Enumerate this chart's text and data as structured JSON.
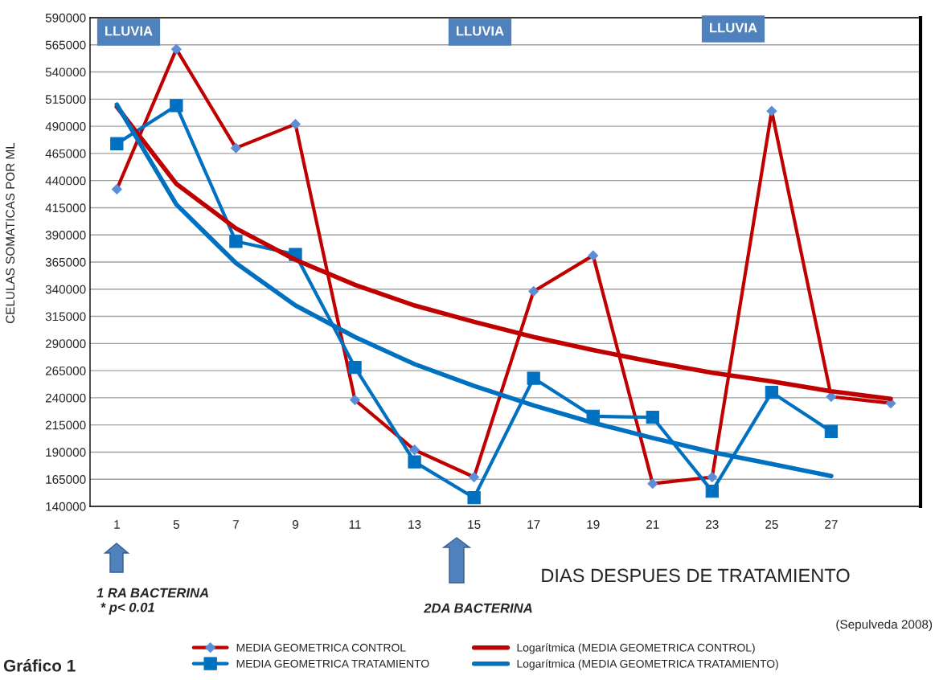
{
  "chart_data": {
    "type": "line",
    "xlabel": "DIAS DESPUES DE TRATAMIENTO",
    "ylabel": "CELULAS SOMATICAS POR ML",
    "categories": [
      "1",
      "5",
      "7",
      "9",
      "11",
      "13",
      "15",
      "17",
      "19",
      "21",
      "23",
      "25",
      "27",
      null
    ],
    "series": [
      {
        "name": "MEDIA GEOMETRICA CONTROL",
        "color": "#c00000",
        "marker": "diamond",
        "values": [
          432000,
          561000,
          470000,
          492000,
          238000,
          192000,
          167000,
          338000,
          371000,
          161000,
          167000,
          504000,
          241000,
          235000
        ]
      },
      {
        "name": "MEDIA GEOMETRICA TRATAMIENTO",
        "color": "#0070c0",
        "marker": "square",
        "values": [
          474000,
          509000,
          384000,
          372000,
          268000,
          181000,
          148000,
          258000,
          223000,
          222000,
          154000,
          245000,
          209000,
          null
        ]
      },
      {
        "name": "Logarítmica (MEDIA GEOMETRICA CONTROL)",
        "color": "#c00000",
        "marker": "none",
        "values": [
          508000,
          437000,
          396000,
          367000,
          344000,
          325000,
          310000,
          296000,
          284000,
          273000,
          263000,
          255000,
          246000,
          239000
        ]
      },
      {
        "name": "Logarítmica (MEDIA GEOMETRICA TRATAMIENTO)",
        "color": "#0070c0",
        "marker": "none",
        "values": [
          510000,
          418000,
          364000,
          325000,
          296000,
          271000,
          251000,
          233000,
          217000,
          203000,
          190000,
          179000,
          168000,
          null
        ]
      }
    ],
    "ylim": [
      140000,
      590000
    ],
    "yticks": [
      140000,
      165000,
      190000,
      215000,
      240000,
      265000,
      290000,
      315000,
      340000,
      365000,
      390000,
      415000,
      440000,
      465000,
      490000,
      515000,
      540000,
      565000,
      590000
    ],
    "grid": "y",
    "legend": "bottom",
    "line_style": "solid",
    "annotations": [
      "LLUVIA",
      "LLUVIA",
      "LLUVIA",
      "1 RA BACTERINA\n * p< 0.01",
      "2DA BACTERINA",
      "(Sepulveda 2008)",
      "Gráfico 1"
    ]
  }
}
